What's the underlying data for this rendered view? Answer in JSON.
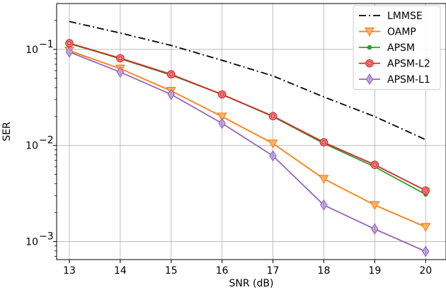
{
  "chart_data": {
    "type": "line",
    "title": "",
    "xlabel": "SNR (dB)",
    "ylabel": "SER",
    "x": [
      13,
      14,
      15,
      16,
      17,
      18,
      19,
      20
    ],
    "xlim": [
      12.75,
      20.4
    ],
    "ylim": [
      0.00065,
      0.3
    ],
    "yscale": "log",
    "x_ticks": [
      13,
      14,
      15,
      16,
      17,
      18,
      19,
      20
    ],
    "y_ticks": [
      {
        "value": 0.001,
        "base": "10",
        "exp": "−3"
      },
      {
        "value": 0.01,
        "base": "10",
        "exp": "−2"
      },
      {
        "value": 0.1,
        "base": "10",
        "exp": "−1"
      }
    ],
    "grid": true,
    "legend_position": "top-right",
    "series": [
      {
        "name": "LMMSE",
        "color": "#000000",
        "dash": "dashdot",
        "marker": "none",
        "values": [
          0.195,
          0.148,
          0.11,
          0.077,
          0.053,
          0.032,
          0.02,
          0.0115
        ]
      },
      {
        "name": "OAMP",
        "color": "#ff7f0e",
        "dash": "solid",
        "marker": "triangle-down",
        "values": [
          0.097,
          0.063,
          0.037,
          0.02,
          0.0105,
          0.0045,
          0.0024,
          0.00142
        ]
      },
      {
        "name": "APSM",
        "color": "#2ca02c",
        "dash": "solid",
        "marker": "small-circle",
        "values": [
          0.115,
          0.08,
          0.054,
          0.034,
          0.02,
          0.0105,
          0.006,
          0.0031
        ]
      },
      {
        "name": "APSM-L2",
        "color": "#d62728",
        "dash": "solid",
        "marker": "circle-dot",
        "values": [
          0.116,
          0.081,
          0.055,
          0.034,
          0.0202,
          0.0108,
          0.0063,
          0.0034
        ]
      },
      {
        "name": "APSM-L1",
        "color": "#9467bd",
        "dash": "solid",
        "marker": "diamond",
        "values": [
          0.094,
          0.058,
          0.034,
          0.017,
          0.0078,
          0.0024,
          0.00135,
          0.00079
        ]
      }
    ]
  }
}
